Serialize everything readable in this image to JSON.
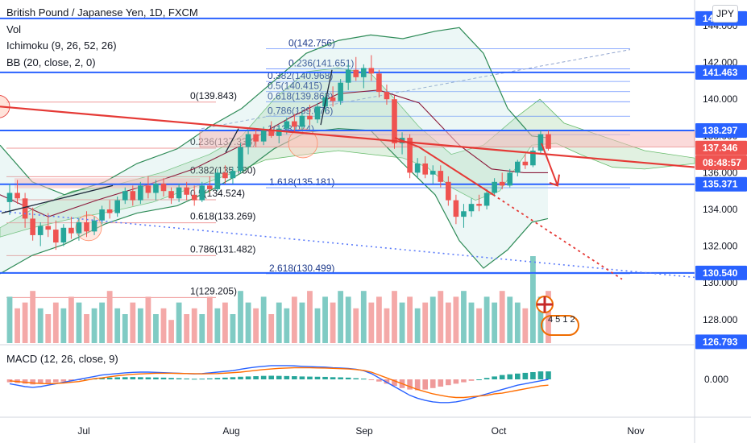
{
  "legend": {
    "title": "British Pound / Japanese Yen, 1D, FXCM",
    "vol": "Vol",
    "ichimoku": "Ichimoku (9, 26, 52, 26)",
    "bb": "BB (20, close, 2, 0)"
  },
  "currency_button": "JPY",
  "macd_label": "MACD (12, 26, close, 9)",
  "colors": {
    "up": "#26a69a",
    "down": "#ef5350",
    "horizontal_line": "#2962ff",
    "trendline": "#e53935",
    "bb": "#2e8b57",
    "cloud": "#c8e6c9",
    "ichimoku": "#8b1a3a",
    "fib": "#2962ff"
  },
  "chart_data": {
    "type": "candlestick",
    "symbol": "GBPJPY",
    "timeframe": "1D",
    "y_axis": {
      "ticks": [
        "144.000",
        "142.000",
        "140.000",
        "138.000",
        "136.000",
        "134.000",
        "132.000",
        "130.000",
        "128.000"
      ],
      "range": [
        126.6,
        144.2
      ]
    },
    "x_axis": {
      "ticks": [
        "Jul",
        "Aug",
        "Sep",
        "Oct",
        "Nov"
      ]
    },
    "price_labels": [
      {
        "id": "top",
        "text": "144.xx",
        "value": 144.4
      },
      {
        "id": "h1",
        "text": "141.463",
        "value": 141.463
      },
      {
        "id": "h2",
        "text": "138.297",
        "value": 138.297
      },
      {
        "id": "last",
        "text": "137.346",
        "value": 137.346
      },
      {
        "id": "timer",
        "text": "08:48:57",
        "value": 136.55
      },
      {
        "id": "h3",
        "text": "135.371",
        "value": 135.371
      },
      {
        "id": "h4",
        "text": "130.540",
        "value": 130.54
      },
      {
        "id": "bottom",
        "text": "126.793",
        "value": 126.793
      }
    ],
    "horizontal_levels": [
      144.4,
      141.463,
      138.297,
      135.371,
      130.54
    ],
    "fib_retracement_left": [
      {
        "label": "0(139.843)",
        "value": 139.843
      },
      {
        "label": "0.236(137.333)",
        "value": 137.333
      },
      {
        "label": "0.382(135.780)",
        "value": 135.78
      },
      {
        "label": "0.5(134.524)",
        "value": 134.524
      },
      {
        "label": "0.618(133.269)",
        "value": 133.269
      },
      {
        "label": "0.786(131.482)",
        "value": 131.482
      },
      {
        "label": "1(129.205)",
        "value": 129.205
      }
    ],
    "fib_extension_right": [
      {
        "label": "0(142.756)",
        "value": 142.756
      },
      {
        "label": "0.236(141.651)",
        "value": 141.651
      },
      {
        "label": "0.382(140.968)",
        "value": 140.968
      },
      {
        "label": "0.5(140.415)",
        "value": 140.415
      },
      {
        "label": "0.618(139.863)",
        "value": 139.863
      },
      {
        "label": "0.786(139.076)",
        "value": 139.076
      },
      {
        "label": "1(138.074)",
        "value": 138.074
      },
      {
        "label": "1.618(135.181)",
        "value": 135.181
      },
      {
        "label": "2.618(130.499)",
        "value": 130.499
      }
    ],
    "candles": [
      [
        134.4,
        135.4,
        133.7,
        134.9
      ],
      [
        134.9,
        135.6,
        134.3,
        134.6
      ],
      [
        134.6,
        134.9,
        133.0,
        133.5
      ],
      [
        133.5,
        134.1,
        132.3,
        132.6
      ],
      [
        132.6,
        133.3,
        132.0,
        133.1
      ],
      [
        133.1,
        133.8,
        132.5,
        132.9
      ],
      [
        132.9,
        133.4,
        131.8,
        132.2
      ],
      [
        132.2,
        133.2,
        132.0,
        133.0
      ],
      [
        133.0,
        133.6,
        132.4,
        132.7
      ],
      [
        132.7,
        133.5,
        132.3,
        133.3
      ],
      [
        133.3,
        133.9,
        132.5,
        132.8
      ],
      [
        132.8,
        133.6,
        132.6,
        133.4
      ],
      [
        133.4,
        134.2,
        133.2,
        134.0
      ],
      [
        134.0,
        134.5,
        133.5,
        133.8
      ],
      [
        133.8,
        134.7,
        133.6,
        134.5
      ],
      [
        134.5,
        135.2,
        134.3,
        135.0
      ],
      [
        135.0,
        135.3,
        134.2,
        134.5
      ],
      [
        134.5,
        135.5,
        134.3,
        135.3
      ],
      [
        135.3,
        135.8,
        134.6,
        134.9
      ],
      [
        134.9,
        135.6,
        134.5,
        135.4
      ],
      [
        135.4,
        135.7,
        134.7,
        135.0
      ],
      [
        135.0,
        135.2,
        134.3,
        134.6
      ],
      [
        134.6,
        135.4,
        134.4,
        135.2
      ],
      [
        135.2,
        135.5,
        134.5,
        134.8
      ],
      [
        134.8,
        135.3,
        134.2,
        134.5
      ],
      [
        134.5,
        135.5,
        134.4,
        135.3
      ],
      [
        135.3,
        135.8,
        134.9,
        135.1
      ],
      [
        135.1,
        136.2,
        135.0,
        136.0
      ],
      [
        136.0,
        136.4,
        135.4,
        135.7
      ],
      [
        135.7,
        136.3,
        135.4,
        136.1
      ],
      [
        136.1,
        137.6,
        136.0,
        137.4
      ],
      [
        137.4,
        138.3,
        137.0,
        138.1
      ],
      [
        138.1,
        138.4,
        137.4,
        137.7
      ],
      [
        137.7,
        138.5,
        137.5,
        138.3
      ],
      [
        138.3,
        138.8,
        137.9,
        138.0
      ],
      [
        138.0,
        138.6,
        137.6,
        138.4
      ],
      [
        138.4,
        139.0,
        138.1,
        138.8
      ],
      [
        138.8,
        139.2,
        138.2,
        138.5
      ],
      [
        138.5,
        139.4,
        138.3,
        139.1
      ],
      [
        139.1,
        139.7,
        138.6,
        138.9
      ],
      [
        138.9,
        139.8,
        138.7,
        139.6
      ],
      [
        139.6,
        140.3,
        139.3,
        140.1
      ],
      [
        140.1,
        140.7,
        139.6,
        139.9
      ],
      [
        139.9,
        141.1,
        139.7,
        140.9
      ],
      [
        140.9,
        141.9,
        140.5,
        141.6
      ],
      [
        141.6,
        142.3,
        141.0,
        141.2
      ],
      [
        141.2,
        141.9,
        140.6,
        141.7
      ],
      [
        141.7,
        142.4,
        141.0,
        141.4
      ],
      [
        141.4,
        141.6,
        140.1,
        140.4
      ],
      [
        140.4,
        140.8,
        139.7,
        140.0
      ],
      [
        140.0,
        140.2,
        137.3,
        137.6
      ],
      [
        137.6,
        138.2,
        137.0,
        137.9
      ],
      [
        137.9,
        138.1,
        135.7,
        136.0
      ],
      [
        136.0,
        136.8,
        135.7,
        136.5
      ],
      [
        136.5,
        136.9,
        135.7,
        135.9
      ],
      [
        135.9,
        136.4,
        135.4,
        136.1
      ],
      [
        136.1,
        136.4,
        135.2,
        135.5
      ],
      [
        135.5,
        135.8,
        134.2,
        134.5
      ],
      [
        134.5,
        134.8,
        133.2,
        133.6
      ],
      [
        133.6,
        134.3,
        133.0,
        133.9
      ],
      [
        133.9,
        134.6,
        133.6,
        134.3
      ],
      [
        134.3,
        134.8,
        133.9,
        134.2
      ],
      [
        134.2,
        135.1,
        134.0,
        134.9
      ],
      [
        134.9,
        135.7,
        134.7,
        135.5
      ],
      [
        135.5,
        136.0,
        135.1,
        135.3
      ],
      [
        135.3,
        136.2,
        135.2,
        136.0
      ],
      [
        136.0,
        136.7,
        135.8,
        136.6
      ],
      [
        136.6,
        137.0,
        136.2,
        136.4
      ],
      [
        136.4,
        137.4,
        136.3,
        137.2
      ],
      [
        137.2,
        138.3,
        137.0,
        138.1
      ],
      [
        138.1,
        138.3,
        137.2,
        137.3
      ]
    ],
    "volumes": [
      8,
      6,
      7,
      9,
      6,
      5,
      7,
      6,
      8,
      7,
      5,
      6,
      7,
      9,
      6,
      5,
      7,
      6,
      8,
      5,
      6,
      4,
      7,
      5,
      6,
      5,
      8,
      6,
      7,
      5,
      9,
      7,
      6,
      8,
      5,
      7,
      6,
      8,
      7,
      9,
      6,
      8,
      7,
      9,
      8,
      6,
      9,
      7,
      8,
      6,
      9,
      7,
      8,
      6,
      7,
      8,
      9,
      7,
      8,
      9,
      7,
      6,
      8,
      7,
      9,
      8,
      7,
      6,
      22,
      8,
      9
    ],
    "macd": {
      "histogram": [
        -0.2,
        -0.25,
        -0.3,
        -0.35,
        -0.3,
        -0.25,
        -0.2,
        -0.15,
        -0.1,
        -0.05,
        0.0,
        0.05,
        0.1,
        0.12,
        0.14,
        0.15,
        0.16,
        0.15,
        0.14,
        0.13,
        0.12,
        0.1,
        0.08,
        0.06,
        0.04,
        0.05,
        0.07,
        0.1,
        0.12,
        0.15,
        0.18,
        0.2,
        0.22,
        0.24,
        0.25,
        0.24,
        0.23,
        0.22,
        0.2,
        0.19,
        0.18,
        0.17,
        0.15,
        0.14,
        0.12,
        0.08,
        0.05,
        -0.05,
        -0.15,
        -0.3,
        -0.45,
        -0.6,
        -0.7,
        -0.75,
        -0.7,
        -0.6,
        -0.5,
        -0.4,
        -0.3,
        -0.2,
        -0.1,
        0.0,
        0.1,
        0.2,
        0.3,
        0.35,
        0.4,
        0.45,
        0.5,
        0.55,
        0.55
      ],
      "macd_line": [
        -0.3,
        -0.4,
        -0.5,
        -0.55,
        -0.5,
        -0.4,
        -0.3,
        -0.2,
        -0.1,
        0.0,
        0.1,
        0.2,
        0.3,
        0.35,
        0.4,
        0.45,
        0.48,
        0.5,
        0.5,
        0.48,
        0.46,
        0.44,
        0.42,
        0.4,
        0.38,
        0.4,
        0.45,
        0.5,
        0.55,
        0.6,
        0.7,
        0.78,
        0.85,
        0.9,
        0.95,
        0.95,
        0.95,
        0.93,
        0.9,
        0.88,
        0.86,
        0.84,
        0.8,
        0.78,
        0.75,
        0.7,
        0.6,
        0.4,
        0.1,
        -0.2,
        -0.5,
        -0.8,
        -1.1,
        -1.3,
        -1.45,
        -1.55,
        -1.6,
        -1.6,
        -1.55,
        -1.45,
        -1.3,
        -1.15,
        -1.0,
        -0.85,
        -0.7,
        -0.55,
        -0.4,
        -0.3,
        -0.2,
        -0.1,
        0.0
      ],
      "signal_line": [
        -0.1,
        -0.15,
        -0.2,
        -0.25,
        -0.28,
        -0.3,
        -0.28,
        -0.25,
        -0.2,
        -0.15,
        -0.05,
        0.05,
        0.1,
        0.18,
        0.25,
        0.3,
        0.35,
        0.38,
        0.4,
        0.42,
        0.42,
        0.42,
        0.41,
        0.4,
        0.39,
        0.38,
        0.39,
        0.4,
        0.43,
        0.46,
        0.5,
        0.56,
        0.62,
        0.68,
        0.72,
        0.76,
        0.78,
        0.8,
        0.8,
        0.8,
        0.79,
        0.78,
        0.76,
        0.74,
        0.72,
        0.68,
        0.62,
        0.5,
        0.3,
        0.1,
        -0.1,
        -0.3,
        -0.5,
        -0.7,
        -0.85,
        -1.0,
        -1.1,
        -1.2,
        -1.25,
        -1.25,
        -1.2,
        -1.15,
        -1.1,
        -1.0,
        -0.95,
        -0.85,
        -0.75,
        -0.65,
        -0.55,
        -0.45,
        -0.4
      ],
      "zero_label": "0.000"
    }
  },
  "badge_text": "4  5  1  2"
}
